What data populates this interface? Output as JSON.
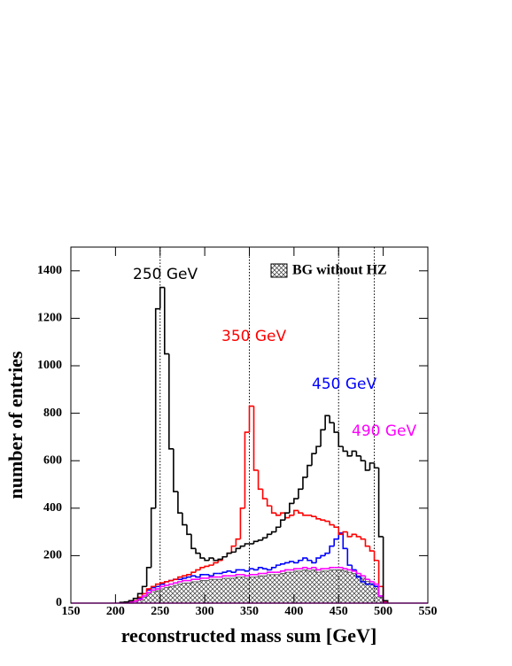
{
  "chart_data": {
    "type": "histogram",
    "xlabel": "reconstructed mass sum [GeV]",
    "ylabel": "number of entries",
    "xlim": [
      150,
      550
    ],
    "ylim": [
      0,
      1500
    ],
    "xticks": [
      150,
      200,
      250,
      300,
      350,
      400,
      450,
      500,
      550
    ],
    "yticks": [
      0,
      200,
      400,
      600,
      800,
      1000,
      1200,
      1400
    ],
    "reference_lines": [
      250,
      350,
      450,
      490
    ],
    "bins": [
      205,
      210,
      215,
      220,
      225,
      230,
      235,
      240,
      245,
      250,
      255,
      260,
      265,
      270,
      275,
      280,
      285,
      290,
      295,
      300,
      305,
      310,
      315,
      320,
      325,
      330,
      335,
      340,
      345,
      350,
      355,
      360,
      365,
      370,
      375,
      380,
      385,
      390,
      395,
      400,
      405,
      410,
      415,
      420,
      425,
      430,
      435,
      440,
      445,
      450,
      455,
      460,
      465,
      470,
      475,
      480,
      485,
      490,
      495,
      500,
      505
    ],
    "series": [
      {
        "name": "BG without HZ",
        "color": "#444444",
        "hatched": true,
        "values": [
          0,
          1,
          3,
          6,
          12,
          25,
          38,
          48,
          52,
          60,
          65,
          70,
          75,
          80,
          85,
          85,
          90,
          90,
          95,
          95,
          100,
          100,
          100,
          105,
          105,
          105,
          110,
          110,
          105,
          110,
          110,
          115,
          115,
          120,
          120,
          120,
          125,
          130,
          130,
          135,
          135,
          140,
          135,
          140,
          130,
          135,
          135,
          140,
          140,
          140,
          135,
          130,
          125,
          115,
          105,
          92,
          82,
          72,
          25,
          1
        ]
      },
      {
        "name": "450 GeV",
        "color": "#0000ff",
        "values": [
          1,
          2,
          5,
          10,
          20,
          40,
          55,
          65,
          70,
          80,
          90,
          95,
          100,
          100,
          105,
          110,
          115,
          110,
          120,
          120,
          115,
          125,
          125,
          130,
          135,
          130,
          140,
          140,
          135,
          145,
          140,
          150,
          145,
          140,
          150,
          160,
          165,
          170,
          175,
          170,
          180,
          190,
          180,
          170,
          190,
          200,
          210,
          240,
          270,
          295,
          230,
          160,
          140,
          110,
          90,
          80,
          80,
          70,
          30,
          2
        ]
      },
      {
        "name": "350 GeV",
        "color": "#ff0000",
        "values": [
          2,
          3,
          5,
          10,
          25,
          40,
          60,
          70,
          80,
          85,
          90,
          95,
          100,
          110,
          115,
          120,
          130,
          140,
          150,
          155,
          160,
          170,
          180,
          195,
          210,
          240,
          270,
          400,
          720,
          830,
          560,
          480,
          440,
          410,
          380,
          370,
          380,
          360,
          370,
          390,
          380,
          370,
          370,
          365,
          355,
          350,
          345,
          330,
          320,
          290,
          300,
          280,
          290,
          280,
          270,
          240,
          220,
          180,
          70,
          5
        ]
      },
      {
        "name": "490 GeV",
        "color": "#ff00ff",
        "values": [
          1,
          2,
          4,
          8,
          15,
          30,
          45,
          55,
          60,
          70,
          75,
          80,
          85,
          90,
          95,
          95,
          100,
          100,
          105,
          105,
          110,
          110,
          110,
          115,
          115,
          115,
          120,
          120,
          115,
          120,
          120,
          125,
          125,
          130,
          130,
          130,
          135,
          140,
          140,
          145,
          145,
          150,
          145,
          150,
          140,
          145,
          145,
          150,
          150,
          150,
          145,
          140,
          135,
          125,
          115,
          100,
          90,
          80,
          30,
          2
        ]
      },
      {
        "name": "250 GeV",
        "color": "#000000",
        "values": [
          3,
          5,
          10,
          20,
          40,
          70,
          150,
          400,
          1240,
          1330,
          1050,
          650,
          470,
          380,
          330,
          290,
          230,
          210,
          190,
          180,
          190,
          180,
          185,
          195,
          210,
          215,
          230,
          240,
          250,
          250,
          260,
          265,
          275,
          290,
          300,
          320,
          350,
          380,
          420,
          440,
          480,
          530,
          580,
          630,
          660,
          730,
          790,
          760,
          720,
          660,
          640,
          620,
          640,
          620,
          600,
          560,
          590,
          570,
          280,
          10
        ]
      }
    ]
  }
}
